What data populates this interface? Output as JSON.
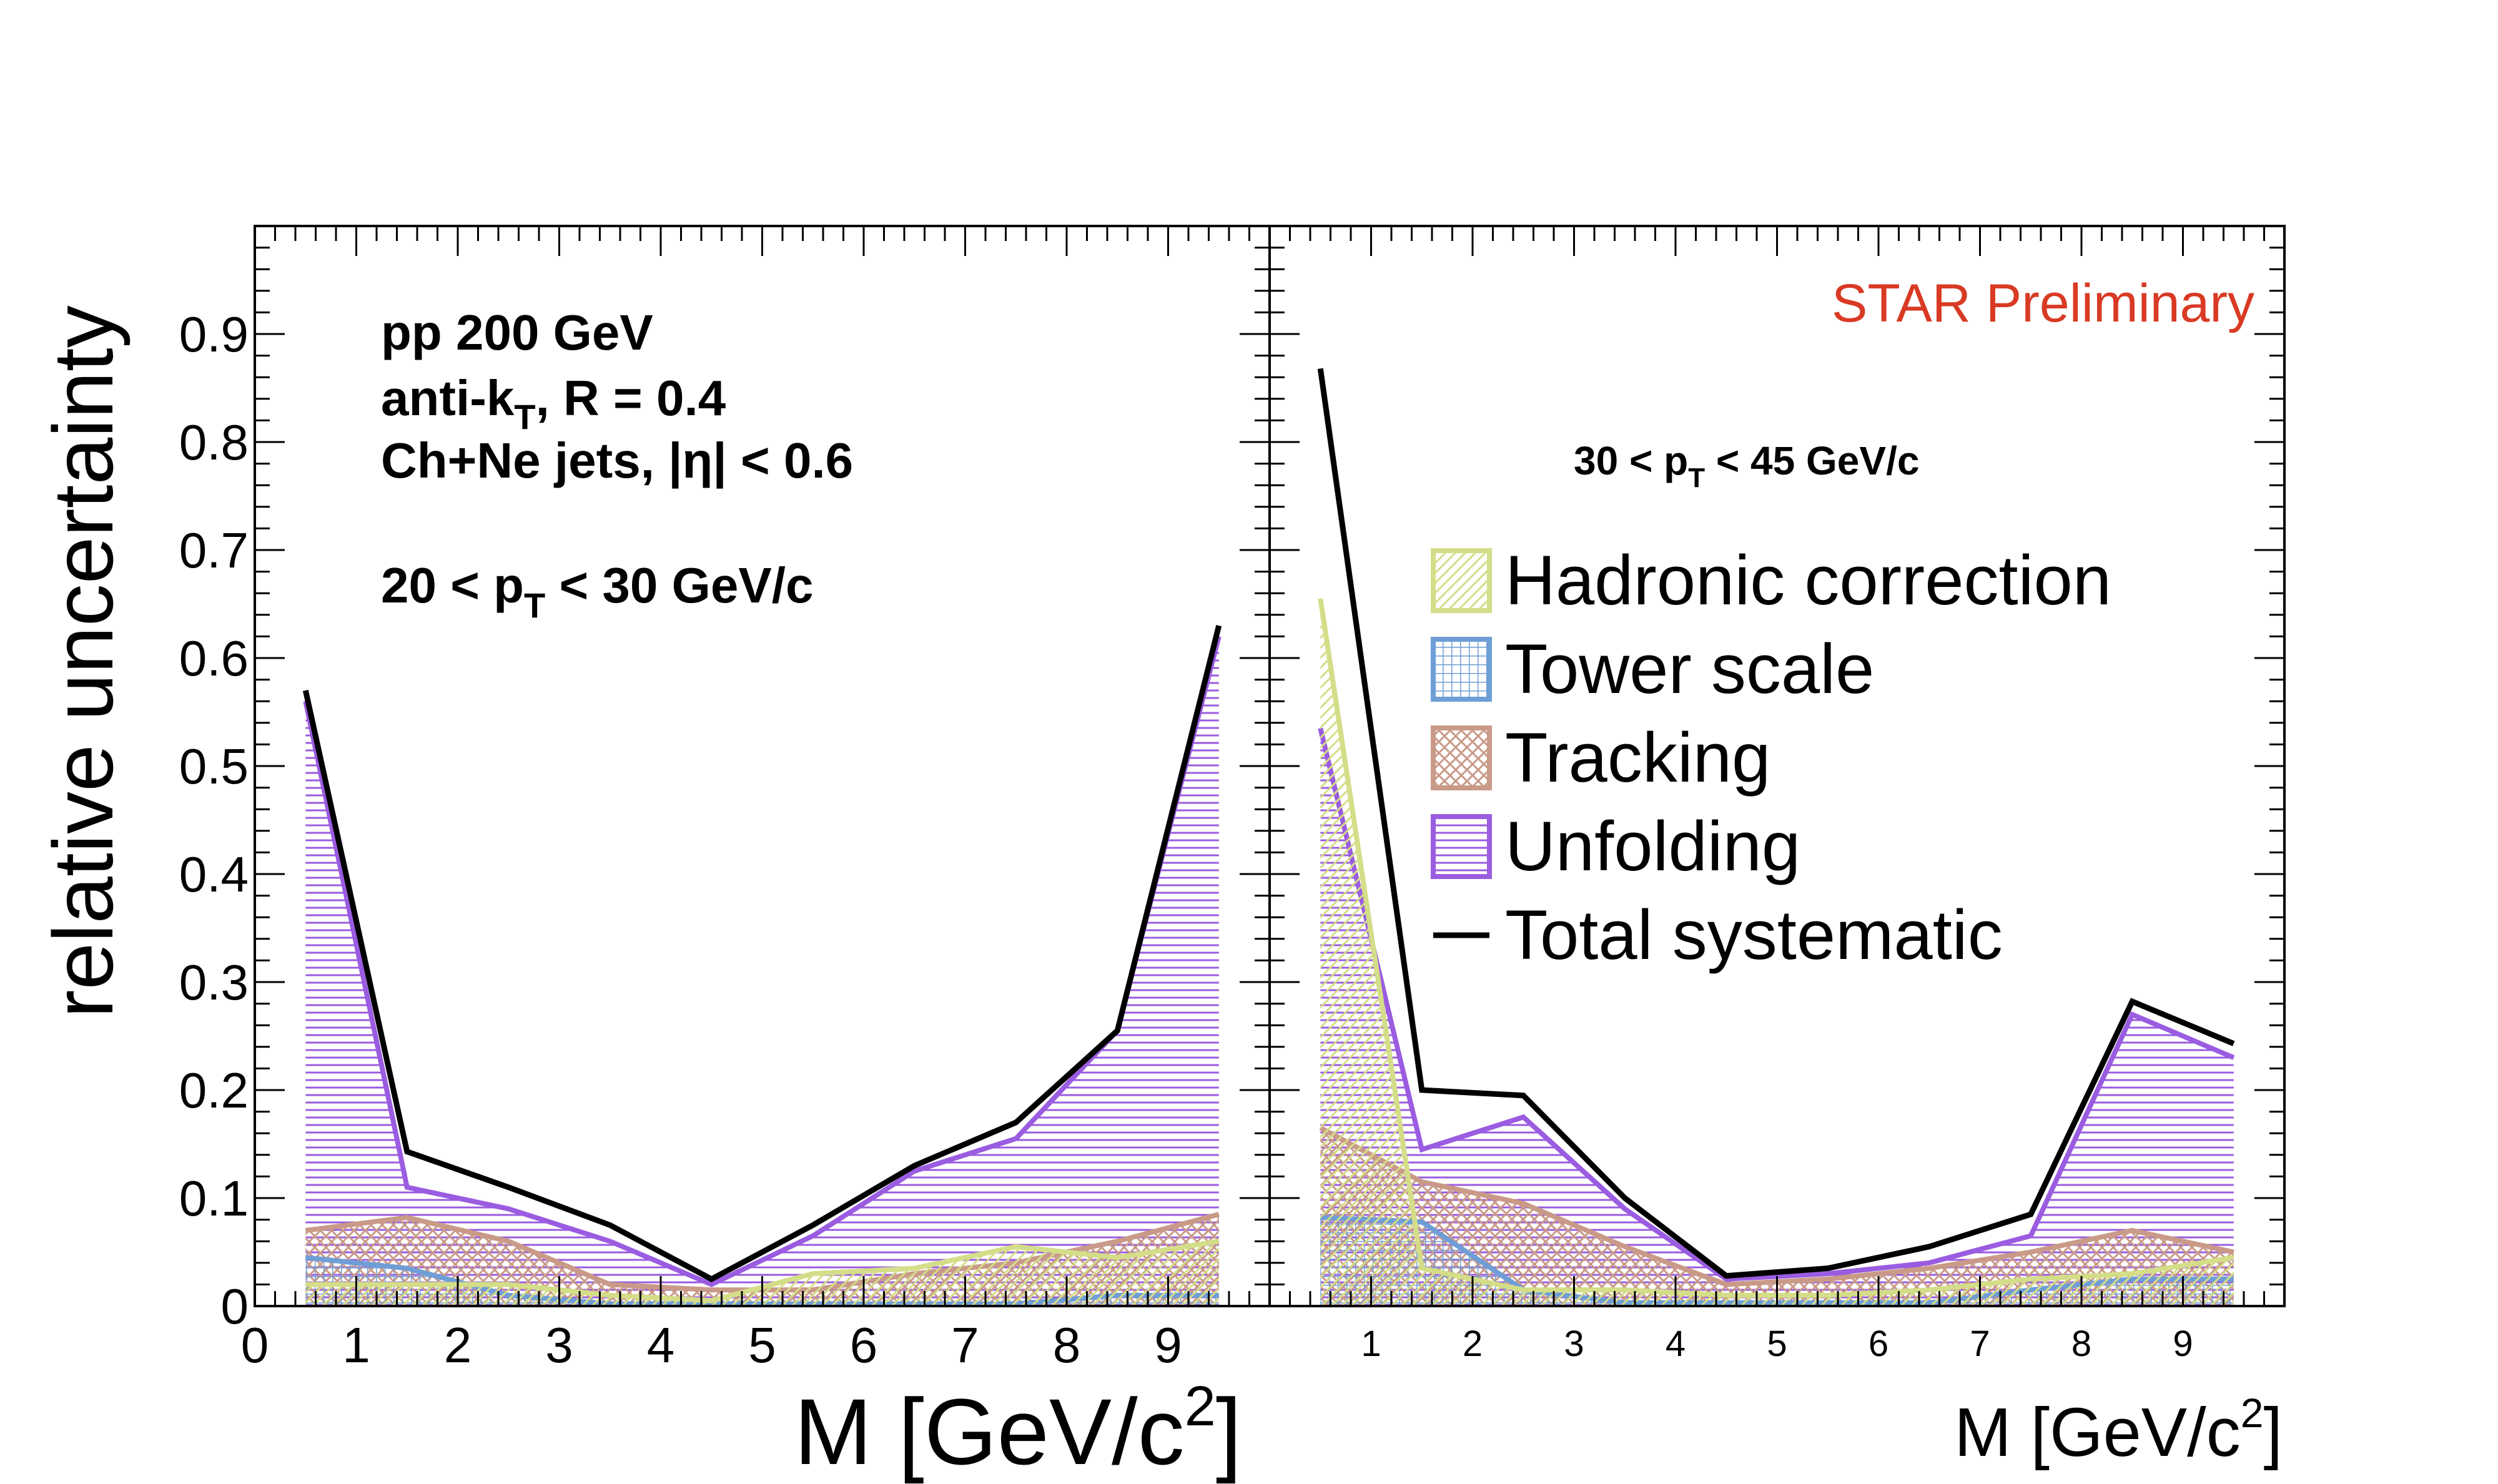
{
  "chart_data": [
    {
      "type": "area",
      "panel": "left",
      "xlabel": "M [GeV/c²]",
      "ylabel": "relative uncertainty",
      "xlim": [
        0,
        10
      ],
      "ylim": [
        0,
        1
      ],
      "x_ticks": [
        "0",
        "1",
        "2",
        "3",
        "4",
        "5",
        "6",
        "7",
        "8",
        "9"
      ],
      "y_ticks": [
        "0",
        "0.1",
        "0.2",
        "0.3",
        "0.4",
        "0.5",
        "0.6",
        "0.7",
        "0.8",
        "0.9"
      ],
      "annotations": [
        "pp 200 GeV",
        "anti-k_T, R = 0.4",
        "Ch+Ne jets, |η| < 0.6",
        "20 < p_T < 30 GeV/c"
      ],
      "x": [
        0.5,
        1.5,
        2.5,
        3.5,
        4.5,
        5.5,
        6.5,
        7.5,
        8.5,
        9.5
      ],
      "series": [
        {
          "name": "Hadronic correction",
          "values": [
            0.02,
            0.02,
            0.02,
            0.01,
            0.005,
            0.03,
            0.035,
            0.055,
            0.045,
            0.06
          ]
        },
        {
          "name": "Tower scale",
          "values": [
            0.045,
            0.035,
            0.01,
            0.002,
            0.002,
            0.002,
            0.002,
            0.002,
            0.01,
            0.01
          ]
        },
        {
          "name": "Tracking",
          "values": [
            0.07,
            0.082,
            0.06,
            0.02,
            0.015,
            0.015,
            0.03,
            0.04,
            0.06,
            0.085
          ]
        },
        {
          "name": "Unfolding",
          "values": [
            0.56,
            0.11,
            0.09,
            0.06,
            0.02,
            0.065,
            0.125,
            0.155,
            0.255,
            0.62
          ]
        },
        {
          "name": "Total systematic",
          "values": [
            0.57,
            0.143,
            0.11,
            0.075,
            0.025,
            0.075,
            0.13,
            0.17,
            0.255,
            0.63
          ]
        }
      ]
    },
    {
      "type": "area",
      "panel": "right",
      "xlabel": "M [GeV/c²]",
      "xlim": [
        0,
        10
      ],
      "ylim": [
        0,
        1
      ],
      "x_ticks": [
        "1",
        "2",
        "3",
        "4",
        "5",
        "6",
        "7",
        "8",
        "9"
      ],
      "annotations": [
        "30 < p_T < 45 GeV/c"
      ],
      "watermark": "STAR Preliminary",
      "x": [
        0.5,
        1.5,
        2.5,
        3.5,
        4.5,
        5.5,
        6.5,
        7.5,
        8.5,
        9.5
      ],
      "series": [
        {
          "name": "Hadronic correction",
          "values": [
            0.655,
            0.035,
            0.015,
            0.015,
            0.01,
            0.01,
            0.015,
            0.025,
            0.03,
            0.045
          ]
        },
        {
          "name": "Tower scale",
          "values": [
            0.082,
            0.078,
            0.015,
            0.003,
            0.003,
            0.003,
            0.003,
            0.015,
            0.025,
            0.025
          ]
        },
        {
          "name": "Tracking",
          "values": [
            0.165,
            0.115,
            0.095,
            0.055,
            0.02,
            0.025,
            0.035,
            0.05,
            0.07,
            0.05
          ]
        },
        {
          "name": "Unfolding",
          "values": [
            0.535,
            0.145,
            0.175,
            0.09,
            0.025,
            0.03,
            0.04,
            0.065,
            0.27,
            0.23
          ]
        },
        {
          "name": "Total systematic",
          "values": [
            0.868,
            0.2,
            0.195,
            0.1,
            0.028,
            0.035,
            0.055,
            0.085,
            0.282,
            0.243
          ]
        }
      ]
    }
  ],
  "colors": {
    "hadronic": "#d4dd88",
    "tower": "#6f9ed6",
    "tracking": "#c99a88",
    "unfolding": "#9a5ce0",
    "total": "#000000",
    "star": "#d93a24"
  },
  "legend": [
    {
      "label": "Hadronic correction",
      "key": "hadronic"
    },
    {
      "label": "Tower scale",
      "key": "tower"
    },
    {
      "label": "Tracking",
      "key": "tracking"
    },
    {
      "label": "Unfolding",
      "key": "unfolding"
    },
    {
      "label": "Total systematic",
      "key": "total"
    }
  ]
}
